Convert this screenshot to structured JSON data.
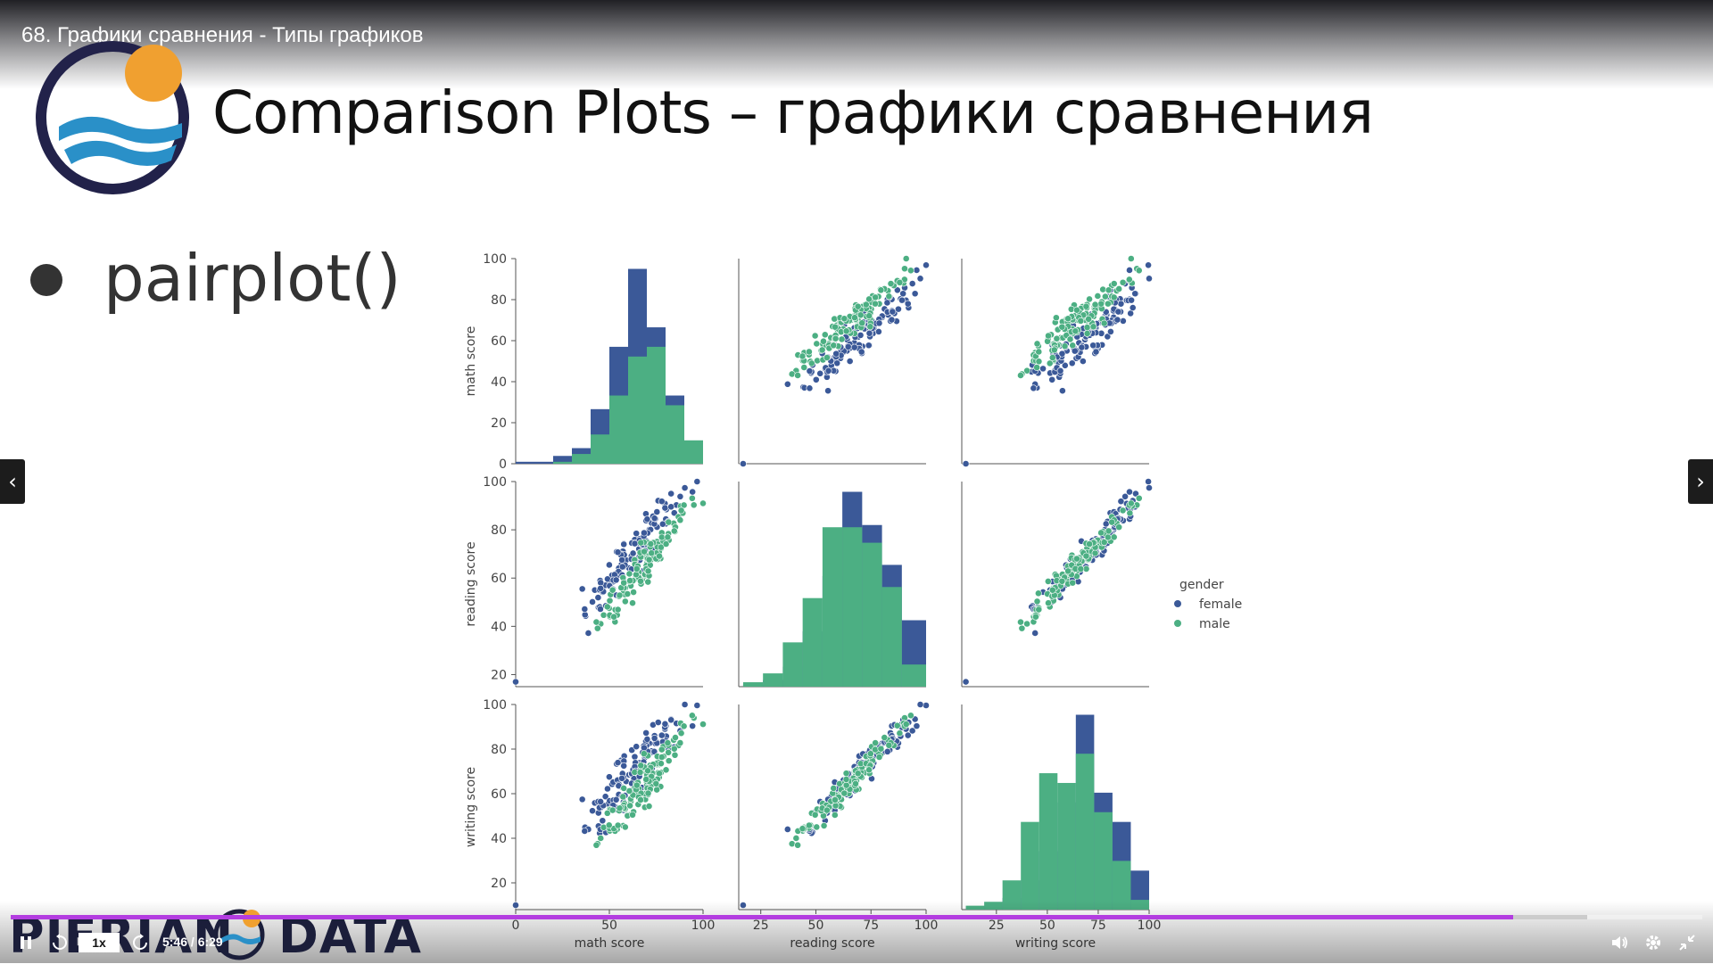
{
  "video": {
    "title": "68. Графики сравнения - Типы графиков",
    "time": "5:46 / 6:29",
    "speed": "1x",
    "progress": 0.888,
    "buffered": 0.932
  },
  "slide": {
    "title": "Comparison Plots – графики сравнения",
    "bullet": "pairplot()",
    "brand_left": "PIERIAN",
    "brand_right": "DATA"
  },
  "icons": {
    "prev": "chevron-left-icon",
    "next": "chevron-right-icon",
    "pause": "pause-icon",
    "rewind": "rewind-icon",
    "forward": "forward-icon",
    "volume": "volume-icon",
    "settings": "gear-icon",
    "exit_fullscreen": "exit-fullscreen-icon"
  },
  "colors": {
    "female": "#3b5998",
    "male": "#4caf83",
    "progress": "#b33de0"
  },
  "chart_data": {
    "type": "pairplot",
    "variables": [
      "math score",
      "reading score",
      "writing score"
    ],
    "hue": "gender",
    "legend": {
      "title": "gender",
      "entries": [
        "female",
        "male"
      ],
      "placement": "right"
    },
    "axes": {
      "math score": {
        "lim": [
          0,
          100
        ],
        "ticks": [
          0,
          20,
          40,
          60,
          80,
          100
        ],
        "xticks": [
          0,
          50,
          100
        ]
      },
      "reading score": {
        "lim": [
          15,
          100
        ],
        "ticks": [
          20,
          40,
          60,
          80,
          100
        ],
        "xticks": [
          25,
          50,
          75,
          100
        ]
      },
      "writing score": {
        "lim": [
          8,
          100
        ],
        "ticks": [
          20,
          40,
          60,
          80,
          100
        ],
        "xticks": [
          25,
          50,
          75,
          100
        ]
      }
    },
    "histograms": {
      "math score": {
        "bins": [
          0,
          10,
          20,
          30,
          40,
          50,
          60,
          70,
          80,
          90,
          100
        ],
        "female": [
          1,
          1,
          4,
          8,
          28,
          60,
          100,
          70,
          35,
          8
        ],
        "male": [
          0,
          0,
          1,
          5,
          15,
          35,
          55,
          60,
          30,
          12
        ]
      },
      "reading score": {
        "bins": [
          17,
          26,
          35,
          44,
          53,
          62,
          71,
          80,
          89,
          100
        ],
        "female": [
          1,
          3,
          9,
          25,
          50,
          88,
          73,
          55,
          30
        ],
        "male": [
          2,
          6,
          20,
          40,
          72,
          72,
          65,
          45,
          10
        ]
      },
      "writing score": {
        "bins": [
          10,
          19,
          28,
          37,
          46,
          55,
          64,
          73,
          82,
          91,
          100
        ],
        "female": [
          1,
          2,
          6,
          15,
          30,
          55,
          100,
          60,
          45,
          20
        ],
        "male": [
          2,
          4,
          15,
          45,
          70,
          65,
          80,
          50,
          25,
          5
        ]
      }
    },
    "scatter": {
      "female": {
        "n": 120,
        "math_reading_offset": 7,
        "math_writing_offset": 9,
        "reading_writing_offset": 0
      },
      "male": {
        "n": 120,
        "math_reading_offset": -4,
        "math_writing_offset": -7,
        "reading_writing_offset": -1
      },
      "outliers": {
        "math": 0,
        "reading": 17,
        "writing": 10
      }
    }
  }
}
